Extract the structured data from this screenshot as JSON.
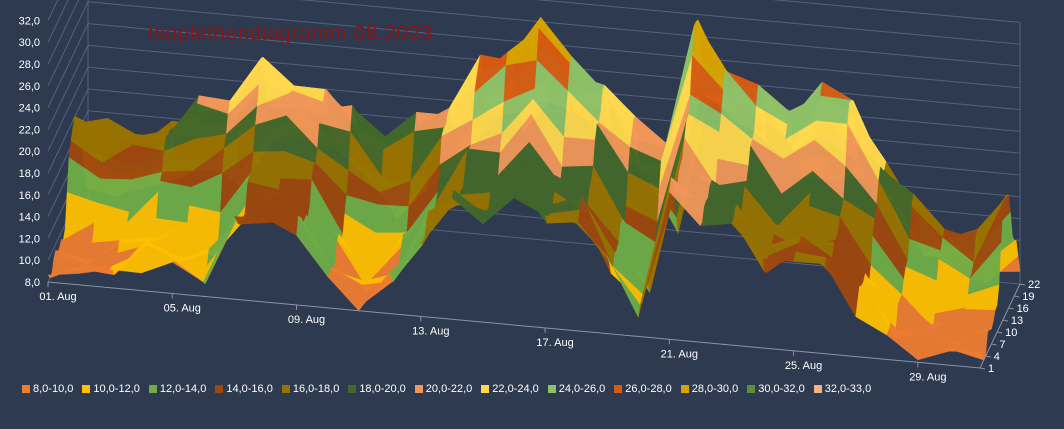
{
  "chart_data": {
    "type": "surface",
    "title": "Isoplethendiagramm 08.2023",
    "z_ticks": [
      "8,0",
      "10,0",
      "12,0",
      "14,0",
      "16,0",
      "18,0",
      "20,0",
      "22,0",
      "24,0",
      "26,0",
      "28,0",
      "30,0",
      "32,0"
    ],
    "zlim": [
      8,
      32
    ],
    "x_ticks": [
      "01. Aug",
      "05. Aug",
      "09. Aug",
      "13. Aug",
      "17. Aug",
      "21. Aug",
      "25. Aug",
      "29. Aug"
    ],
    "y_ticks": [
      "1",
      "4",
      "7",
      "10",
      "13",
      "16",
      "19",
      "22"
    ],
    "legend": [
      {
        "label": "8,0-10,0",
        "color": "#ed7d31"
      },
      {
        "label": "10,0-12,0",
        "color": "#ffc000"
      },
      {
        "label": "12,0-14,0",
        "color": "#70ad47"
      },
      {
        "label": "14,0-16,0",
        "color": "#9e480e"
      },
      {
        "label": "16,0-18,0",
        "color": "#997300"
      },
      {
        "label": "18,0-20,0",
        "color": "#43682b"
      },
      {
        "label": "20,0-22,0",
        "color": "#f1975a"
      },
      {
        "label": "22,0-24,0",
        "color": "#ffd94d"
      },
      {
        "label": "24,0-26,0",
        "color": "#8cc168"
      },
      {
        "label": "26,0-28,0",
        "color": "#d55a12"
      },
      {
        "label": "28,0-30,0",
        "color": "#d6a300"
      },
      {
        "label": "30,0-32,0",
        "color": "#5e8f3c"
      },
      {
        "label": "32,0-33,0",
        "color": "#f4b183"
      }
    ],
    "daily_max_estimate": [
      18,
      17,
      17,
      18,
      20,
      21,
      24,
      23,
      22,
      21,
      19,
      20,
      22,
      26,
      28,
      31,
      27,
      25,
      22,
      21,
      32,
      28,
      26,
      24,
      27,
      26,
      21,
      17,
      15,
      14,
      19
    ]
  }
}
